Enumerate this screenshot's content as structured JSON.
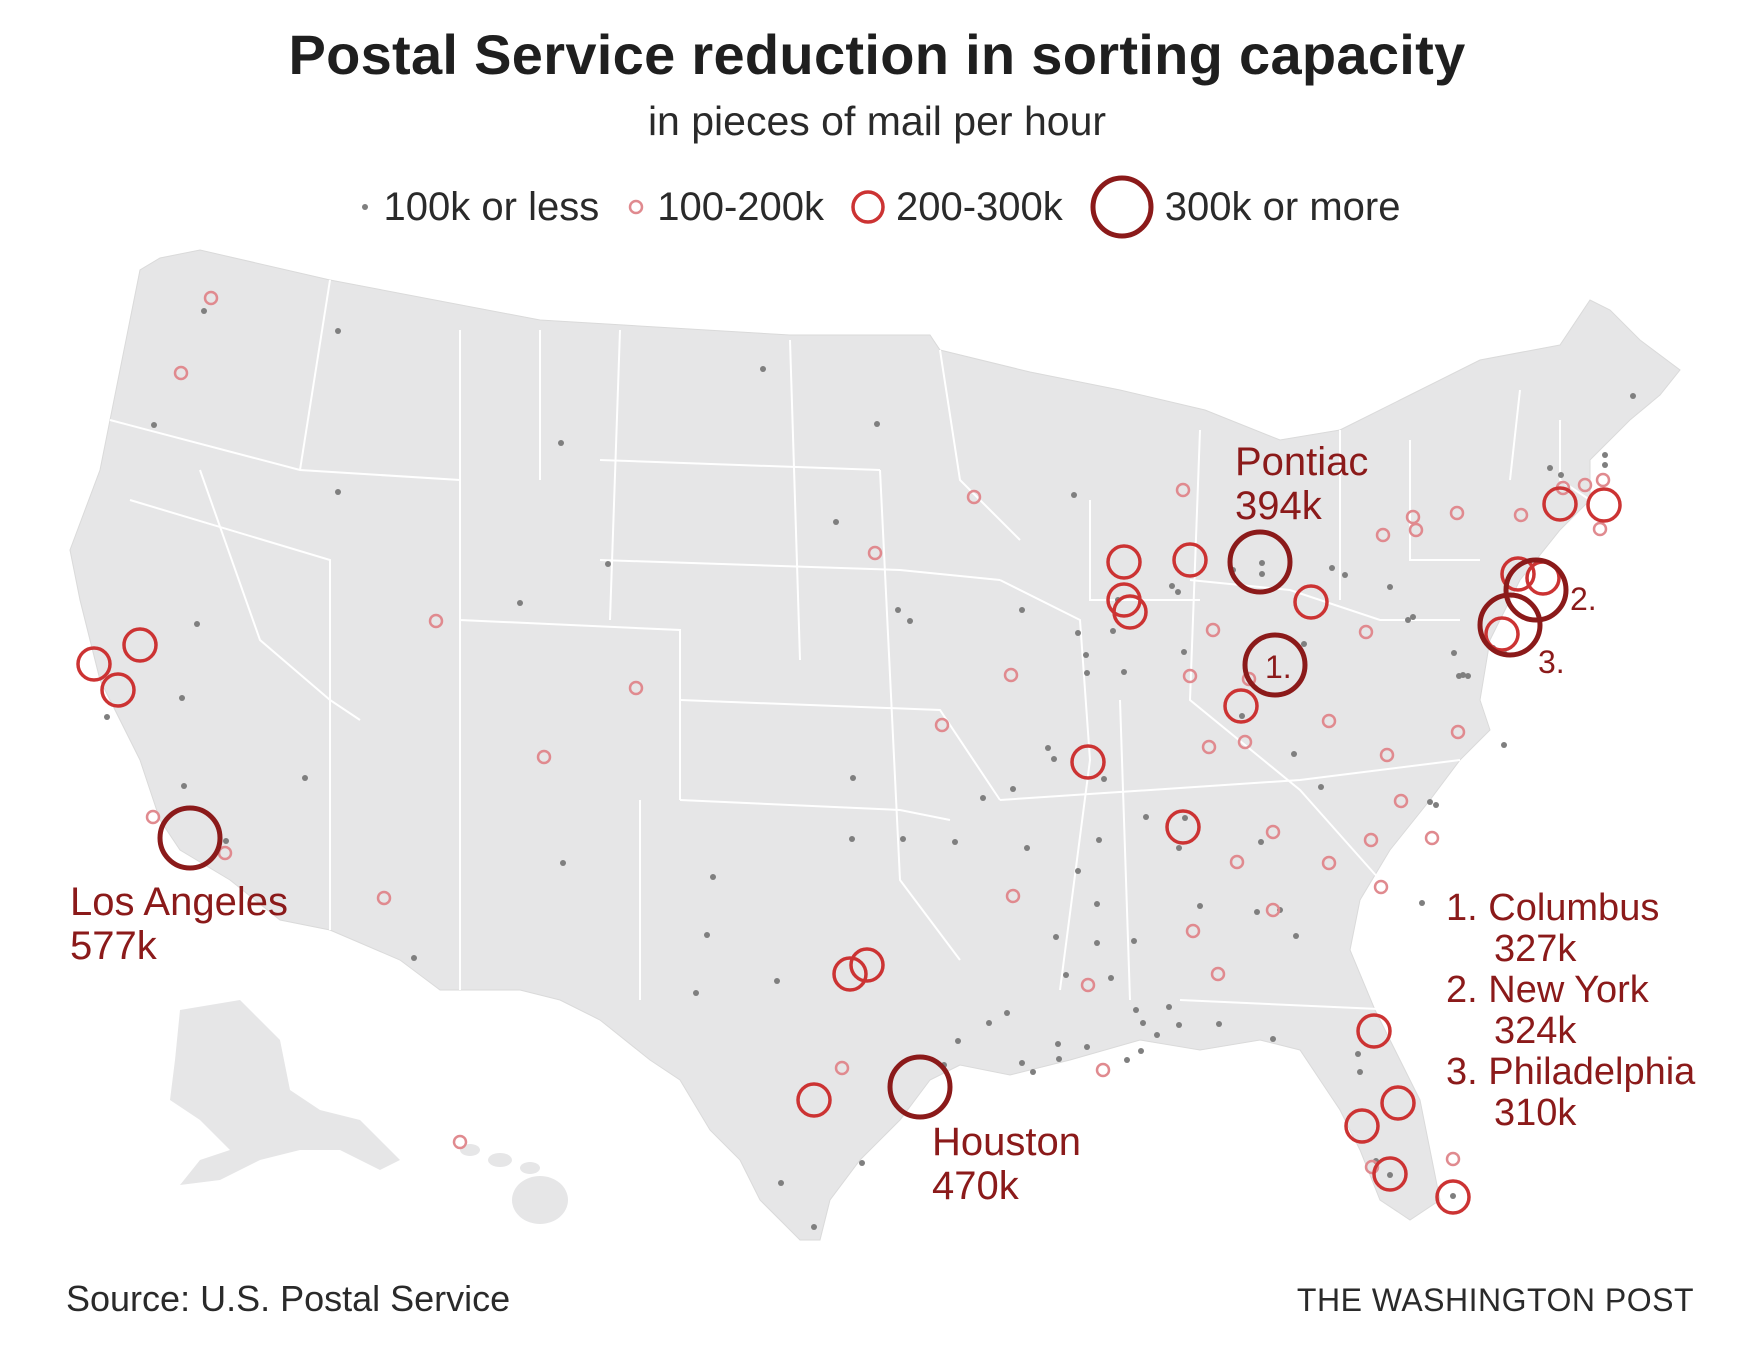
{
  "header": {
    "title": "Postal Service reduction in sorting capacity",
    "subtitle": "in pieces of mail per hour"
  },
  "legend": [
    {
      "label": "100k or less",
      "tier": "xs"
    },
    {
      "label": "100-200k",
      "tier": "s"
    },
    {
      "label": "200-300k",
      "tier": "m"
    },
    {
      "label": "300k or more",
      "tier": "l"
    }
  ],
  "colors": {
    "land": "#e6e6e7",
    "state_border": "#ffffff",
    "dot_gray": "#7f7f7f",
    "ring_pink": "#e08a8f",
    "ring_red": "#cc3333",
    "ring_dark": "#8b1a1a",
    "label_red": "#8b1a1a"
  },
  "callouts": {
    "pontiac": {
      "name": "Pontiac",
      "value": "394k"
    },
    "los_angeles": {
      "name": "Los Angeles",
      "value": "577k"
    },
    "houston": {
      "name": "Houston",
      "value": "470k"
    },
    "marker_1": "1.",
    "marker_2": "2.",
    "marker_3": "3."
  },
  "ranked_key": [
    {
      "rank_name": "1. Columbus",
      "value": "327k"
    },
    {
      "rank_name": "2. New York",
      "value": "324k"
    },
    {
      "rank_name": "3. Philadelphia",
      "value": "310k"
    }
  ],
  "footer": {
    "source": "Source: U.S. Postal Service",
    "credit": "THE WASHINGTON POST"
  }
}
